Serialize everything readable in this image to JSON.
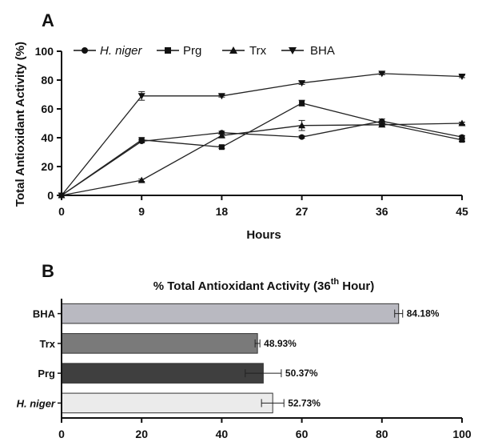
{
  "chart_data": [
    {
      "type": "line",
      "panel": "A",
      "title": "",
      "xlabel": "Hours",
      "ylabel": "Total Antioxidant Activity (%)",
      "x": [
        0,
        9,
        18,
        27,
        36,
        45
      ],
      "xticks": [
        "0",
        "9",
        "18",
        "27",
        "36",
        "45"
      ],
      "yticks": [
        "0",
        "20",
        "40",
        "60",
        "80",
        "100"
      ],
      "xlim": [
        0,
        45
      ],
      "ylim": [
        0,
        100
      ],
      "grid": false,
      "legend_position": "top",
      "series": [
        {
          "name": "H. niger",
          "marker": "circle",
          "values": [
            0,
            37.5,
            43.5,
            40.5,
            51.5,
            40.5
          ],
          "errors": [
            0,
            1.0,
            1.0,
            0.8,
            1.5,
            1.0
          ]
        },
        {
          "name": "Prg",
          "marker": "square",
          "values": [
            0,
            38.5,
            33.5,
            64.0,
            50.0,
            38.5
          ],
          "errors": [
            0,
            1.5,
            1.0,
            2.0,
            1.5,
            1.0
          ]
        },
        {
          "name": "Trx",
          "marker": "triangle-up",
          "values": [
            0,
            10.5,
            41.5,
            48.5,
            49.0,
            50.0
          ],
          "errors": [
            0,
            0.8,
            1.0,
            3.5,
            1.5,
            0.8
          ]
        },
        {
          "name": "BHA",
          "marker": "triangle-down",
          "values": [
            0,
            69.0,
            69.0,
            78.0,
            84.5,
            82.5
          ],
          "errors": [
            0,
            3.0,
            0.8,
            1.0,
            0.8,
            0.8
          ]
        }
      ]
    },
    {
      "type": "bar",
      "orientation": "horizontal",
      "panel": "B",
      "title": "% Total Antioxidant Activity (36",
      "title_sup": "th",
      "title_end": " Hour)",
      "xlabel": "",
      "ylabel": "",
      "xlim": [
        0,
        100
      ],
      "xticks": [
        "0",
        "20",
        "40",
        "60",
        "80",
        "100"
      ],
      "categories": [
        "BHA",
        "Trx",
        "Prg",
        "H. niger"
      ],
      "values": [
        84.18,
        48.93,
        50.37,
        52.73
      ],
      "errors": [
        1.0,
        0.6,
        4.5,
        2.8
      ],
      "value_labels": [
        "84.18%",
        "48.93%",
        "50.37%",
        "52.73%"
      ],
      "colors": [
        "#b9b9c1",
        "#7a7a7a",
        "#3f3f3f",
        "#ebebeb"
      ]
    }
  ]
}
